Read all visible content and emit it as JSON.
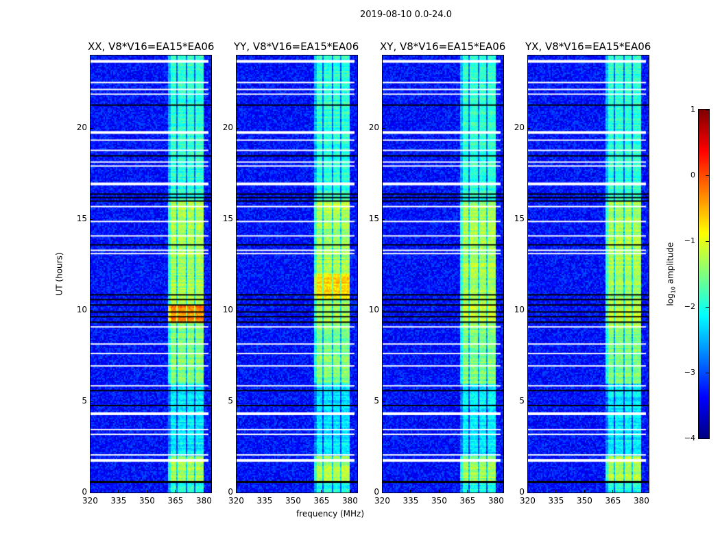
{
  "chart_data": {
    "type": "heatmap",
    "title": "2019-08-10 0.0-24.0",
    "xlabel": "frequency (MHz)",
    "ylabel": "UT (hours)",
    "xlim": [
      320,
      384
    ],
    "ylim": [
      0,
      24
    ],
    "xticks": [
      "320",
      "335",
      "350",
      "365",
      "380"
    ],
    "xtick_values": [
      320,
      335,
      350,
      365,
      380
    ],
    "yticks": [
      "0",
      "5",
      "10",
      "15",
      "20"
    ],
    "ytick_values": [
      0,
      5,
      10,
      15,
      20
    ],
    "panels": [
      {
        "title": "XX, V8*V16=EA15*EA06",
        "peak_window": [
          9.3,
          10.3
        ],
        "peak_level": -0.3
      },
      {
        "title": "YY, V8*V16=EA15*EA06",
        "peak_window": [
          10.6,
          12.0
        ],
        "peak_level": -0.7
      },
      {
        "title": "XY, V8*V16=EA15*EA06",
        "peak_window": [
          9.5,
          10.5
        ],
        "peak_level": -1.1
      },
      {
        "title": "YX, V8*V16=EA15*EA06",
        "peak_window": [
          9.5,
          10.5
        ],
        "peak_level": -1.1
      }
    ],
    "background_level": -3.3,
    "rfi_band_mhz": [
      360.5,
      380
    ],
    "rfi_subband_gaps_mhz": [
      365.5,
      370.6,
      375
    ],
    "rfi_band_levels": [
      {
        "from": 0.6,
        "to": 2.0,
        "level": -1.3
      },
      {
        "from": 2.0,
        "to": 6.0,
        "level": -2.2
      },
      {
        "from": 6.0,
        "to": 9.0,
        "level": -1.5
      },
      {
        "from": 9.0,
        "to": 16.0,
        "level": -1.3
      },
      {
        "from": 16.0,
        "to": 24.0,
        "level": -1.9
      }
    ],
    "flagged_rows_white_hours": [
      23.64,
      22.48,
      22.1,
      21.84,
      19.74,
      19.32,
      18.76,
      18.12,
      17.9,
      16.92,
      15.68,
      14.86,
      14.07,
      13.28,
      13.1,
      9.08,
      8.14,
      7.62,
      6.94,
      5.85,
      4.32,
      3.45,
      3.19,
      2.06,
      1.76
    ],
    "thick_white_rows_hours": [
      23.64,
      19.74,
      16.92,
      4.32,
      1.76
    ],
    "dark_rows_hours": [
      21.24,
      18.46,
      16.36,
      16.17,
      15.98,
      13.58,
      10.84,
      10.58,
      10.28,
      9.9,
      9.64,
      9.34,
      5.59,
      4.77,
      0.6
    ],
    "colorbar": {
      "label_main": "log",
      "label_sub": "10",
      "label_rest": " amplitude",
      "range": [
        -4,
        1
      ],
      "ticks": [
        "1",
        "0",
        "−1",
        "−2",
        "−3",
        "−4"
      ],
      "tick_values": [
        1,
        0,
        -1,
        -2,
        -3,
        -4
      ],
      "colormap": "jet"
    }
  }
}
